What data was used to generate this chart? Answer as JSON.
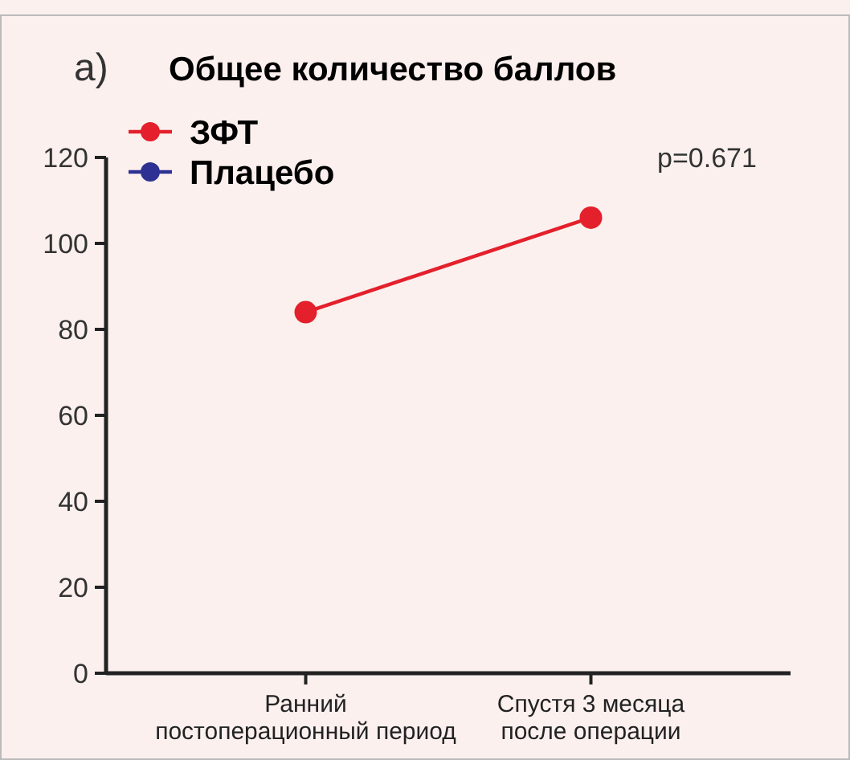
{
  "chart_data": {
    "type": "line",
    "title": "Общее количество баллов",
    "annotations": [
      "а)",
      "p=0.671"
    ],
    "categories": [
      "Ранний\nпостоперационный период",
      "Спустя 3 месяца\nпосле операции"
    ],
    "series": [
      {
        "name": "ЗФТ",
        "color": "#e3202b",
        "values": [
          84,
          106
        ]
      },
      {
        "name": "Плацебо",
        "color": "#2e3192",
        "values": [
          null,
          null
        ]
      }
    ],
    "ylim": [
      0,
      120
    ],
    "yticks": [
      0,
      20,
      40,
      60,
      80,
      100,
      120
    ],
    "grid": false,
    "legend": "top left",
    "marker": "circle",
    "line_style": "solid"
  }
}
